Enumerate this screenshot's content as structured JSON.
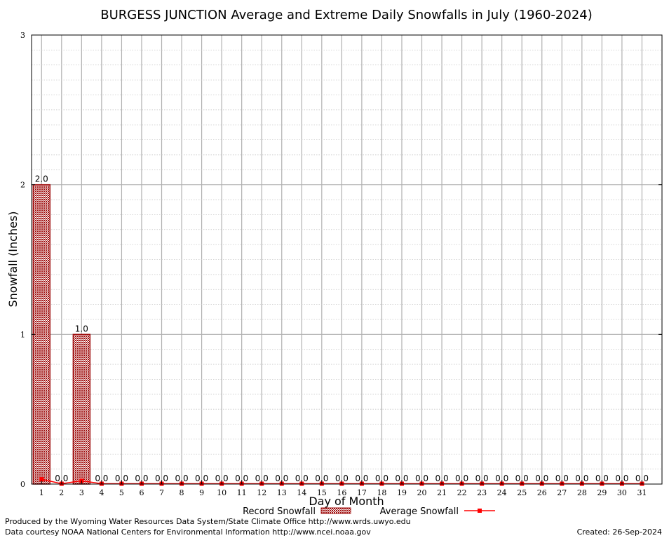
{
  "chart_data": {
    "type": "bar",
    "title": "BURGESS JUNCTION Average and Extreme Daily Snowfalls in July (1960-2024)",
    "xlabel": "Day of Month",
    "ylabel": "Snowfall (Inches)",
    "ylim": [
      0,
      3
    ],
    "yticks": [
      "0",
      "1",
      "2",
      "3"
    ],
    "categories": [
      "1",
      "2",
      "3",
      "4",
      "5",
      "6",
      "7",
      "8",
      "9",
      "10",
      "11",
      "12",
      "13",
      "14",
      "15",
      "16",
      "17",
      "18",
      "19",
      "20",
      "21",
      "22",
      "23",
      "24",
      "25",
      "26",
      "27",
      "28",
      "29",
      "30",
      "31"
    ],
    "series": [
      {
        "name": "Record Snowfall",
        "type": "bar",
        "values": [
          2.0,
          0.0,
          1.0,
          0.0,
          0.0,
          0.0,
          0.0,
          0.0,
          0.0,
          0.0,
          0.0,
          0.0,
          0.0,
          0.0,
          0.0,
          0.0,
          0.0,
          0.0,
          0.0,
          0.0,
          0.0,
          0.0,
          0.0,
          0.0,
          0.0,
          0.0,
          0.0,
          0.0,
          0.0,
          0.0,
          0.0
        ],
        "labels": [
          "2.0",
          "0.0",
          "1.0",
          "0.0",
          "0.0",
          "0.0",
          "0.0",
          "0.0",
          "0.0",
          "0.0",
          "0.0",
          "0.0",
          "0.0",
          "0.0",
          "0.0",
          "0.0",
          "0.0",
          "0.0",
          "0.0",
          "0.0",
          "0.0",
          "0.0",
          "0.0",
          "0.0",
          "0.0",
          "0.0",
          "0.0",
          "0.0",
          "0.0",
          "0.0",
          "0.0"
        ],
        "color": "#a01010"
      },
      {
        "name": "Average Snowfall",
        "type": "line",
        "values": [
          0.03,
          0.0,
          0.02,
          0.0,
          0.0,
          0.0,
          0.0,
          0.0,
          0.0,
          0.0,
          0.0,
          0.0,
          0.0,
          0.0,
          0.0,
          0.0,
          0.0,
          0.0,
          0.0,
          0.0,
          0.0,
          0.0,
          0.0,
          0.0,
          0.0,
          0.0,
          0.0,
          0.0,
          0.0,
          0.0,
          0.0
        ],
        "color": "#ff0000"
      }
    ],
    "grid": true,
    "legend": "bottom"
  },
  "footer": {
    "line1": "Produced by the Wyoming Water Resources Data System/State Climate Office http://www.wrds.uwyo.edu",
    "line2": "Data courtesy NOAA National Centers for Environmental Information http://www.ncei.noaa.gov",
    "created": "Created:  26-Sep-2024"
  }
}
